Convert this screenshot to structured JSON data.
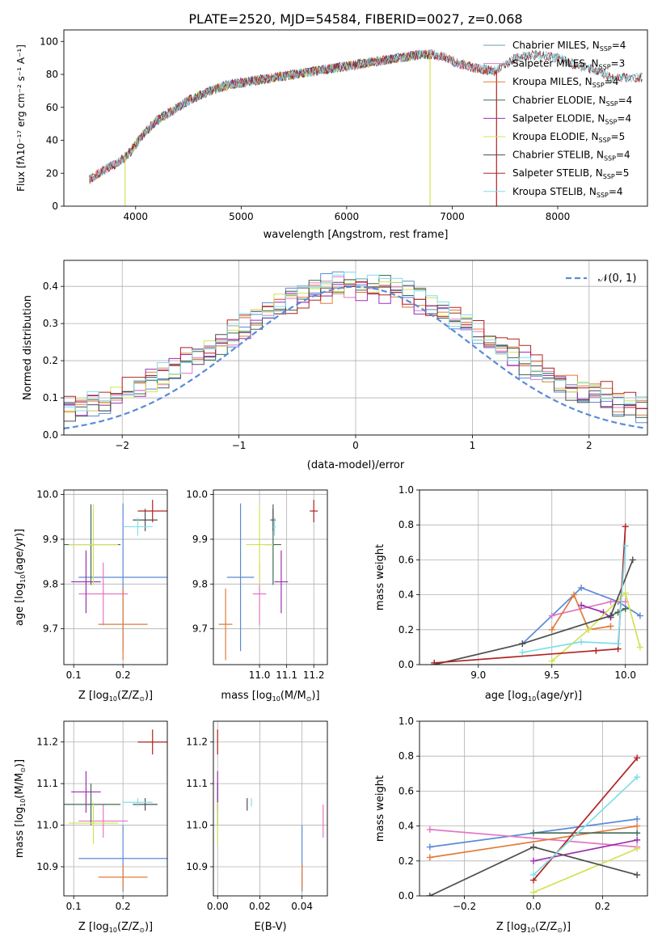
{
  "title": "PLATE=2520, MJD=54584, FIBERID=0027, z=0.068",
  "colors": {
    "chabrier_miles": "#6a9fb5",
    "salpeter_miles": "#e377c2",
    "kroupa_miles": "#e07b39",
    "chabrier_elodie": "#3f6b55",
    "salpeter_elodie": "#9b30b0",
    "kroupa_elodie": "#d4e157",
    "chabrier_stelib": "#4d4d4d",
    "salpeter_stelib": "#b22222",
    "kroupa_stelib": "#80deea",
    "blue": "#5b8bd6",
    "normal": "#5b8bd6",
    "grid": "#b0b0b0"
  },
  "chart_data": [
    {
      "id": "spectrum",
      "type": "line",
      "xlabel": "wavelength [Angstrom, rest frame]",
      "ylabel": "Flux [f$_\\lambda$10$^{-17}$ erg cm$^{-2}$ s$^{-1}$ A$^{-1}$]",
      "xlim": [
        3320,
        8850
      ],
      "ylim": [
        0,
        107
      ],
      "xticks": [
        4000,
        5000,
        6000,
        7000,
        8000
      ],
      "yticks": [
        0,
        20,
        40,
        60,
        80,
        100
      ],
      "grid": false,
      "legend_position": "top-right",
      "legend": [
        {
          "label": "Chabrier MILES, N",
          "sub": "SSP",
          "eq": "=4",
          "color": "#6a9fb5"
        },
        {
          "label": "Salpeter MILES, N",
          "sub": "SSP",
          "eq": "=3",
          "color": "#e377c2"
        },
        {
          "label": "Kroupa MILES, N",
          "sub": "SSP",
          "eq": "=4",
          "color": "#e07b39"
        },
        {
          "label": "Chabrier ELODIE, N",
          "sub": "SSP",
          "eq": "=4",
          "color": "#3f6b55"
        },
        {
          "label": "Salpeter ELODIE, N",
          "sub": "SSP",
          "eq": "=4",
          "color": "#9b30b0"
        },
        {
          "label": "Kroupa ELODIE, N",
          "sub": "SSP",
          "eq": "=5",
          "color": "#d4e157"
        },
        {
          "label": "Chabrier STELIB, N",
          "sub": "SSP",
          "eq": "=4",
          "color": "#4d4d4d"
        },
        {
          "label": "Salpeter STELIB, N",
          "sub": "SSP",
          "eq": "=5",
          "color": "#b22222"
        },
        {
          "label": "Kroupa STELIB, N",
          "sub": "SSP",
          "eq": "=4",
          "color": "#80deea"
        }
      ],
      "continuum_wavelength": [
        3560,
        3700,
        3850,
        3950,
        4050,
        4200,
        4350,
        4500,
        4700,
        4900,
        5100,
        5300,
        5500,
        5700,
        5900,
        6100,
        6300,
        6500,
        6700,
        6800,
        6900,
        7000,
        7200,
        7400,
        7600,
        7800,
        8000,
        8200,
        8400,
        8500
      ],
      "continuum_flux": [
        16,
        22,
        27,
        33,
        42,
        52,
        58,
        64,
        70,
        74,
        76,
        78,
        80,
        82,
        84,
        86,
        88,
        90,
        92,
        92,
        91,
        88,
        84,
        82,
        90,
        92,
        90,
        85,
        82,
        78
      ],
      "model_wavelength_ranges": {
        "Chabrier MILES": [
          3560,
          7400
        ],
        "Salpeter MILES": [
          3560,
          7400
        ],
        "Kroupa MILES": [
          3560,
          7400
        ],
        "Chabrier ELODIE": [
          3900,
          6800
        ],
        "Salpeter ELODIE": [
          3900,
          6800
        ],
        "Kroupa ELODIE": [
          3900,
          6800
        ],
        "Chabrier STELIB": [
          3560,
          8800
        ],
        "Salpeter STELIB": [
          3560,
          8800
        ],
        "Kroupa STELIB": [
          3560,
          8800
        ]
      }
    },
    {
      "id": "residuals",
      "type": "histogram",
      "xlabel": "(data-model)/error",
      "ylabel": "Normed distribution",
      "xlim": [
        -2.5,
        2.5
      ],
      "ylim": [
        0,
        0.47
      ],
      "xticks": [
        -2,
        -1,
        0,
        1,
        2
      ],
      "xticklabels": [
        "−2",
        "−1",
        "0",
        "1",
        "2"
      ],
      "yticks": [
        0,
        0.1,
        0.2,
        0.3,
        0.4
      ],
      "yticklabels": [
        "0.0",
        "0.1",
        "0.2",
        "0.3",
        "0.4"
      ],
      "grid": true,
      "bin_width": 0.1,
      "normal_label": "𝒩(0, 1)",
      "normal_line": {
        "style": "dashed",
        "mean": 0,
        "sigma": 1
      },
      "series": [
        {
          "name": "Chabrier MILES",
          "amplitude": 0.39,
          "sigma": 1.05,
          "floor": 0.03,
          "offset": 0.0
        },
        {
          "name": "Salpeter MILES",
          "amplitude": 0.36,
          "sigma": 1.12,
          "floor": 0.04,
          "offset": 0.0
        },
        {
          "name": "Kroupa MILES",
          "amplitude": 0.35,
          "sigma": 1.15,
          "floor": 0.04,
          "offset": 0.0
        },
        {
          "name": "Chabrier ELODIE",
          "amplitude": 0.38,
          "sigma": 1.08,
          "floor": 0.03,
          "offset": 0.0
        },
        {
          "name": "Salpeter ELODIE",
          "amplitude": 0.35,
          "sigma": 1.14,
          "floor": 0.04,
          "offset": 0.0
        },
        {
          "name": "Kroupa ELODIE",
          "amplitude": 0.37,
          "sigma": 1.1,
          "floor": 0.04,
          "offset": 0.0
        },
        {
          "name": "Chabrier STELIB",
          "amplitude": 0.38,
          "sigma": 1.06,
          "floor": 0.04,
          "offset": 0.0
        },
        {
          "name": "Salpeter STELIB",
          "amplitude": 0.34,
          "sigma": 1.2,
          "floor": 0.05,
          "offset": 0.0
        },
        {
          "name": "Kroupa STELIB",
          "amplitude": 0.36,
          "sigma": 1.12,
          "floor": 0.05,
          "offset": 0.0
        }
      ]
    },
    {
      "id": "z_age",
      "type": "errorbar",
      "xlabel": "Z [log",
      "xlabel_parts": [
        "Z [log",
        "10",
        "(Z/Z",
        "⊙",
        ")]"
      ],
      "ylabel_parts": [
        "age  [log",
        "10",
        "(age/yr)]"
      ],
      "xlim": [
        0.08,
        0.29
      ],
      "ylim": [
        9.62,
        10.01
      ],
      "xticks": [
        0.1,
        0.2
      ],
      "yticks": [
        9.7,
        9.8,
        9.9,
        10.0
      ],
      "xticklabels": [
        "0.1",
        "0.2"
      ],
      "yticklabels": [
        "9.7",
        "9.8",
        "9.9",
        "10.0"
      ],
      "grid": true,
      "points": [
        {
          "series": "Chabrier MILES",
          "x": 0.2,
          "xerr": 0.09,
          "y": 9.815,
          "yerr": 0.165
        },
        {
          "series": "Salpeter MILES",
          "x": 0.16,
          "xerr": 0.05,
          "y": 9.778,
          "yerr": 0.07
        },
        {
          "series": "Kroupa MILES",
          "x": 0.2,
          "xerr": 0.05,
          "y": 9.71,
          "yerr": 0.08
        },
        {
          "series": "Chabrier ELODIE",
          "x": 0.135,
          "xerr": 0.06,
          "y": 9.888,
          "yerr": 0.09
        },
        {
          "series": "Salpeter ELODIE",
          "x": 0.125,
          "xerr": 0.03,
          "y": 9.805,
          "yerr": 0.07
        },
        {
          "series": "Kroupa ELODIE",
          "x": 0.14,
          "xerr": 0.05,
          "y": 9.888,
          "yerr": 0.09
        },
        {
          "series": "Chabrier STELIB",
          "x": 0.245,
          "xerr": 0.025,
          "y": 9.943,
          "yerr": 0.025
        },
        {
          "series": "Salpeter STELIB",
          "x": 0.26,
          "xerr": 0.03,
          "y": 9.963,
          "yerr": 0.025
        },
        {
          "series": "Kroupa STELIB",
          "x": 0.23,
          "xerr": 0.03,
          "y": 9.928,
          "yerr": 0.02
        }
      ]
    },
    {
      "id": "mass_age",
      "type": "errorbar",
      "xlabel_parts": [
        "mass [log",
        "10",
        "(M/M",
        "⊙",
        ")]"
      ],
      "xlim": [
        10.83,
        11.25
      ],
      "ylim": [
        9.62,
        10.01
      ],
      "xticks": [
        11.0,
        11.1,
        11.2
      ],
      "yticks": [
        9.7,
        9.8,
        9.9,
        10.0
      ],
      "xticklabels": [
        "11.0",
        "11.1",
        "11.2"
      ],
      "yticklabels": [
        "9.7",
        "9.8",
        "9.9",
        "10.0"
      ],
      "grid": true,
      "points": [
        {
          "series": "Chabrier MILES",
          "x": 10.93,
          "xerr": 0.05,
          "y": 9.815,
          "yerr": 0.165
        },
        {
          "series": "Salpeter MILES",
          "x": 11.0,
          "xerr": 0.025,
          "y": 9.778,
          "yerr": 0.07
        },
        {
          "series": "Kroupa MILES",
          "x": 10.875,
          "xerr": 0.025,
          "y": 9.71,
          "yerr": 0.08
        },
        {
          "series": "Chabrier ELODIE",
          "x": 11.05,
          "xerr": 0.03,
          "y": 9.888,
          "yerr": 0.09
        },
        {
          "series": "Salpeter ELODIE",
          "x": 11.08,
          "xerr": 0.025,
          "y": 9.805,
          "yerr": 0.07
        },
        {
          "series": "Kroupa ELODIE",
          "x": 11.0,
          "xerr": 0.05,
          "y": 9.888,
          "yerr": 0.09
        },
        {
          "series": "Chabrier STELIB",
          "x": 11.05,
          "xerr": 0.01,
          "y": 9.943,
          "yerr": 0.025
        },
        {
          "series": "Salpeter STELIB",
          "x": 11.2,
          "xerr": 0.015,
          "y": 9.963,
          "yerr": 0.025
        },
        {
          "series": "Kroupa STELIB",
          "x": 11.055,
          "xerr": 0.005,
          "y": 9.928,
          "yerr": 0.02
        }
      ]
    },
    {
      "id": "age_weight",
      "type": "line",
      "xlabel_parts": [
        "age  [log",
        "10",
        "(age/yr)]"
      ],
      "ylabel": "mass weight",
      "xlim": [
        8.6,
        10.15
      ],
      "ylim": [
        0,
        1.0
      ],
      "xticks": [
        9.0,
        9.5,
        10.0
      ],
      "yticks": [
        0,
        0.2,
        0.4,
        0.6,
        0.8,
        1.0
      ],
      "xticklabels": [
        "9.0",
        "9.5",
        "10.0"
      ],
      "yticklabels": [
        "0.0",
        "0.2",
        "0.4",
        "0.6",
        "0.8",
        "1.0"
      ],
      "grid": true,
      "series": [
        {
          "name": "Chabrier MILES",
          "x": [
            9.3,
            9.7,
            9.95,
            10.1
          ],
          "y": [
            0.12,
            0.44,
            0.36,
            0.28
          ]
        },
        {
          "name": "Salpeter MILES",
          "x": [
            9.5,
            9.9,
            10.0
          ],
          "y": [
            0.28,
            0.36,
            0.36
          ]
        },
        {
          "name": "Kroupa MILES",
          "x": [
            9.5,
            9.65,
            9.75,
            9.9
          ],
          "y": [
            0.2,
            0.4,
            0.2,
            0.22
          ]
        },
        {
          "name": "Chabrier ELODIE",
          "x": [
            9.9,
            9.95,
            10.0
          ],
          "y": [
            0.28,
            0.3,
            0.32
          ]
        },
        {
          "name": "Salpeter ELODIE",
          "x": [
            9.7,
            9.85,
            9.9
          ],
          "y": [
            0.34,
            0.3,
            0.27
          ]
        },
        {
          "name": "Kroupa ELODIE",
          "x": [
            9.5,
            9.75,
            10.0,
            10.1
          ],
          "y": [
            0.02,
            0.2,
            0.41,
            0.1
          ]
        },
        {
          "name": "Chabrier STELIB",
          "x": [
            8.7,
            9.3,
            9.9,
            10.05
          ],
          "y": [
            0.0,
            0.12,
            0.28,
            0.6
          ]
        },
        {
          "name": "Salpeter STELIB",
          "x": [
            8.7,
            9.8,
            9.95,
            10.0
          ],
          "y": [
            0.01,
            0.08,
            0.09,
            0.79
          ]
        },
        {
          "name": "Kroupa STELIB",
          "x": [
            9.3,
            9.7,
            9.95,
            10.0
          ],
          "y": [
            0.07,
            0.13,
            0.12,
            0.68
          ]
        }
      ]
    },
    {
      "id": "z_mass",
      "type": "errorbar",
      "xlabel_parts": [
        "Z [log",
        "10",
        "(Z/Z",
        "⊙",
        ")]"
      ],
      "ylabel_parts": [
        "mass [log",
        "10",
        "(M/M",
        "⊙",
        ")]"
      ],
      "xlim": [
        0.08,
        0.29
      ],
      "ylim": [
        10.83,
        11.25
      ],
      "xticks": [
        0.1,
        0.2
      ],
      "yticks": [
        10.9,
        11.0,
        11.1,
        11.2
      ],
      "xticklabels": [
        "0.1",
        "0.2"
      ],
      "yticklabels": [
        "10.9",
        "11.0",
        "11.1",
        "11.2"
      ],
      "grid": true,
      "points": [
        {
          "series": "Chabrier MILES",
          "x": 0.2,
          "xerr": 0.09,
          "y": 10.92,
          "yerr": 0.08
        },
        {
          "series": "Salpeter MILES",
          "x": 0.16,
          "xerr": 0.05,
          "y": 11.01,
          "yerr": 0.04
        },
        {
          "series": "Kroupa MILES",
          "x": 0.2,
          "xerr": 0.05,
          "y": 10.875,
          "yerr": 0.03
        },
        {
          "series": "Chabrier ELODIE",
          "x": 0.135,
          "xerr": 0.06,
          "y": 11.05,
          "yerr": 0.05
        },
        {
          "series": "Salpeter ELODIE",
          "x": 0.125,
          "xerr": 0.03,
          "y": 11.08,
          "yerr": 0.05
        },
        {
          "series": "Kroupa ELODIE",
          "x": 0.14,
          "xerr": 0.05,
          "y": 11.005,
          "yerr": 0.05
        },
        {
          "series": "Chabrier STELIB",
          "x": 0.245,
          "xerr": 0.025,
          "y": 11.05,
          "yerr": 0.015
        },
        {
          "series": "Salpeter STELIB",
          "x": 0.26,
          "xerr": 0.03,
          "y": 11.2,
          "yerr": 0.03
        },
        {
          "series": "Kroupa STELIB",
          "x": 0.23,
          "xerr": 0.03,
          "y": 11.055,
          "yerr": 0.01
        }
      ]
    },
    {
      "id": "ebv_mass",
      "type": "errorbar",
      "xlabel": "E(B-V)",
      "xlim": [
        -0.002,
        0.052
      ],
      "ylim": [
        10.83,
        11.25
      ],
      "xticks": [
        0.0,
        0.02,
        0.04
      ],
      "yticks": [
        10.9,
        11.0,
        11.1,
        11.2
      ],
      "xticklabels": [
        "0.00",
        "0.02",
        "0.04"
      ],
      "yticklabels": [
        "10.9",
        "11.0",
        "11.1",
        "11.2"
      ],
      "grid": true,
      "points": [
        {
          "series": "Chabrier MILES",
          "x": 0.04,
          "y": 10.92,
          "yerr": 0.08
        },
        {
          "series": "Salpeter MILES",
          "x": 0.05,
          "y": 11.01,
          "yerr": 0.04
        },
        {
          "series": "Kroupa MILES",
          "x": 0.04,
          "y": 10.875,
          "yerr": 0.03
        },
        {
          "series": "Chabrier ELODIE",
          "x": 0.0,
          "y": 11.05,
          "yerr": 0.05
        },
        {
          "series": "Salpeter ELODIE",
          "x": 0.0,
          "y": 11.08,
          "yerr": 0.05
        },
        {
          "series": "Kroupa ELODIE",
          "x": 0.0,
          "y": 11.005,
          "yerr": 0.05
        },
        {
          "series": "Chabrier STELIB",
          "x": 0.014,
          "y": 11.05,
          "yerr": 0.015
        },
        {
          "series": "Salpeter STELIB",
          "x": 0.0,
          "y": 11.2,
          "yerr": 0.03
        },
        {
          "series": "Kroupa STELIB",
          "x": 0.016,
          "y": 11.055,
          "yerr": 0.01
        }
      ]
    },
    {
      "id": "z_weight",
      "type": "line",
      "xlabel_parts": [
        "Z [log",
        "10",
        "(Z/Z",
        "⊙",
        ")]"
      ],
      "ylabel": "mass weight",
      "xlim": [
        -0.33,
        0.33
      ],
      "ylim": [
        0,
        1.0
      ],
      "xticks": [
        -0.2,
        0.0,
        0.2
      ],
      "yticks": [
        0,
        0.2,
        0.4,
        0.6,
        0.8,
        1.0
      ],
      "xticklabels": [
        "−0.2",
        "0.0",
        "0.2"
      ],
      "yticklabels": [
        "0.0",
        "0.2",
        "0.4",
        "0.6",
        "0.8",
        "1.0"
      ],
      "grid": true,
      "series": [
        {
          "name": "Chabrier MILES",
          "x": [
            -0.3,
            0.3
          ],
          "y": [
            0.28,
            0.44
          ]
        },
        {
          "name": "Salpeter MILES",
          "x": [
            -0.3,
            0.3
          ],
          "y": [
            0.38,
            0.28
          ]
        },
        {
          "name": "Kroupa MILES",
          "x": [
            -0.3,
            0.3
          ],
          "y": [
            0.22,
            0.4
          ]
        },
        {
          "name": "Chabrier ELODIE",
          "x": [
            0.0,
            0.3
          ],
          "y": [
            0.36,
            0.36
          ]
        },
        {
          "name": "Salpeter ELODIE",
          "x": [
            0.0,
            0.3
          ],
          "y": [
            0.2,
            0.32
          ]
        },
        {
          "name": "Kroupa ELODIE",
          "x": [
            0.0,
            0.3
          ],
          "y": [
            0.02,
            0.27
          ]
        },
        {
          "name": "Chabrier STELIB",
          "x": [
            -0.3,
            0.0,
            0.3
          ],
          "y": [
            0.0,
            0.28,
            0.12
          ]
        },
        {
          "name": "Salpeter STELIB",
          "x": [
            0.0,
            0.3
          ],
          "y": [
            0.09,
            0.79
          ]
        },
        {
          "name": "Kroupa STELIB",
          "x": [
            0.0,
            0.3
          ],
          "y": [
            0.12,
            0.68
          ]
        }
      ]
    }
  ]
}
